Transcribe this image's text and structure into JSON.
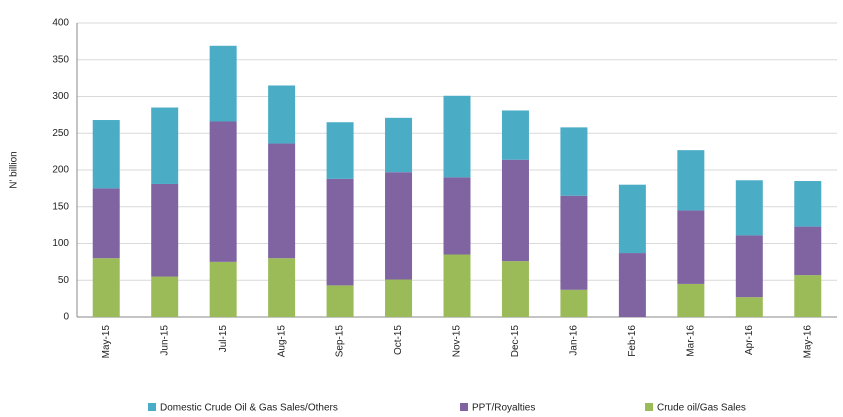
{
  "chart_data": {
    "type": "stacked_bar",
    "y_label": "N' billion",
    "categories": [
      "May-15",
      "Jun-15",
      "Jul-15",
      "Aug-15",
      "Sep-15",
      "Oct-15",
      "Nov-15",
      "Dec-15",
      "Jan-16",
      "Feb-16",
      "Mar-16",
      "Apr-16",
      "May-16"
    ],
    "series": [
      {
        "name": "Crude oil/Gas Sales",
        "color": "#9bbb59",
        "values": [
          80,
          55,
          75,
          80,
          43,
          51,
          85,
          76,
          37,
          0,
          45,
          27,
          57
        ]
      },
      {
        "name": "PPT/Royalties",
        "color": "#8064a2",
        "values": [
          95,
          126,
          191,
          156,
          145,
          146,
          105,
          138,
          128,
          87,
          100,
          84,
          66
        ]
      },
      {
        "name": "Domestic Crude Oil & Gas Sales/Others",
        "color": "#4bacc6",
        "values": [
          93,
          104,
          103,
          79,
          77,
          74,
          111,
          67,
          93,
          93,
          82,
          75,
          62
        ]
      }
    ],
    "legend_order": [
      2,
      1,
      0
    ],
    "ylim": [
      0,
      400
    ],
    "yticks": [
      0,
      50,
      100,
      150,
      200,
      250,
      300,
      350,
      400
    ],
    "grid": true
  }
}
